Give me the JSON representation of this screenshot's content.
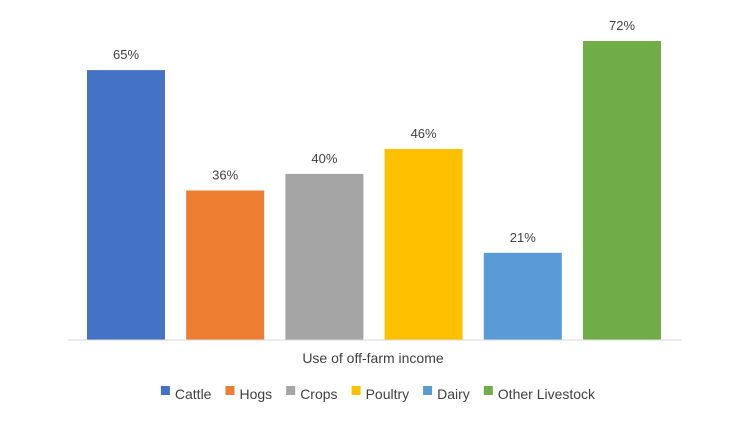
{
  "chart_data": {
    "type": "bar",
    "title": "",
    "xlabel": "Use of off-farm income",
    "ylabel": "",
    "categories": [
      "Cattle",
      "Hogs",
      "Crops",
      "Poultry",
      "Dairy",
      "Other Livestock"
    ],
    "values": [
      65,
      36,
      40,
      46,
      21,
      72
    ],
    "data_labels": [
      "65%",
      "36%",
      "40%",
      "46%",
      "21%",
      "72%"
    ],
    "colors": [
      "#4472C4",
      "#ED7D31",
      "#A5A5A5",
      "#FFC000",
      "#5B9BD5",
      "#70AD47"
    ],
    "ylim": [
      0,
      80
    ],
    "grid": false,
    "legend": {
      "placement": "bottom",
      "entries": [
        "Cattle",
        "Hogs",
        "Crops",
        "Poultry",
        "Dairy",
        "Other Livestock"
      ]
    }
  }
}
